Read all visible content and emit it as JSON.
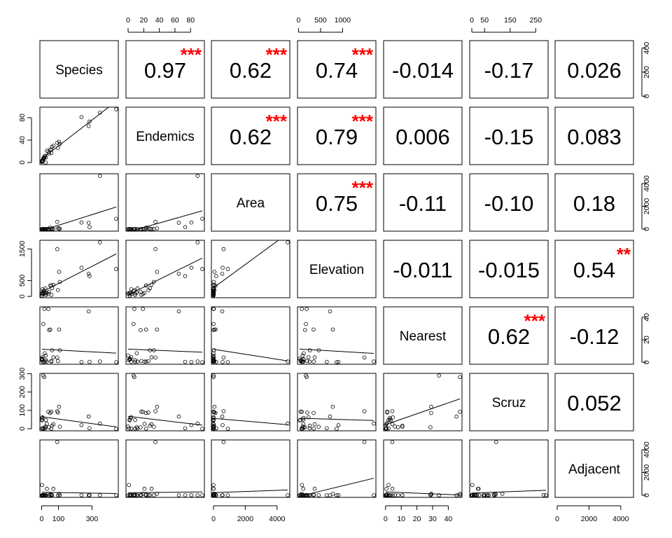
{
  "chart_data": {
    "type": "scatter-matrix",
    "variables": [
      "Species",
      "Endemics",
      "Area",
      "Elevation",
      "Nearest",
      "Scruz",
      "Adjacent"
    ],
    "variable_ticks": {
      "Species": [
        0,
        100,
        300
      ],
      "Endemics": [
        0,
        20,
        40,
        60,
        80
      ],
      "Area": [
        0,
        2000,
        4000
      ],
      "Elevation": [
        0,
        500,
        1000
      ],
      "Nearest": [
        0,
        10,
        20,
        30,
        40
      ],
      "Scruz": [
        0,
        50,
        150,
        250
      ],
      "Adjacent": [
        0,
        2000,
        4000
      ]
    },
    "row_axis_ticks": {
      "Species": [
        0,
        200,
        400
      ],
      "Endemics": [
        0,
        40,
        80
      ],
      "Area": [
        0,
        2000,
        4000
      ],
      "Elevation": [
        0,
        500,
        1500
      ],
      "Nearest": [
        0,
        20,
        40
      ],
      "Scruz": [
        0,
        100,
        200,
        300
      ],
      "Adjacent": [
        0,
        2000,
        4000
      ]
    },
    "correlations": [
      {
        "row": 0,
        "col": 1,
        "value": "0.97",
        "stars": "***"
      },
      {
        "row": 0,
        "col": 2,
        "value": "0.62",
        "stars": "***"
      },
      {
        "row": 0,
        "col": 3,
        "value": "0.74",
        "stars": "***"
      },
      {
        "row": 0,
        "col": 4,
        "value": "-0.014",
        "stars": ""
      },
      {
        "row": 0,
        "col": 5,
        "value": "-0.17",
        "stars": ""
      },
      {
        "row": 0,
        "col": 6,
        "value": "0.026",
        "stars": ""
      },
      {
        "row": 1,
        "col": 2,
        "value": "0.62",
        "stars": "***"
      },
      {
        "row": 1,
        "col": 3,
        "value": "0.79",
        "stars": "***"
      },
      {
        "row": 1,
        "col": 4,
        "value": "0.006",
        "stars": ""
      },
      {
        "row": 1,
        "col": 5,
        "value": "-0.15",
        "stars": ""
      },
      {
        "row": 1,
        "col": 6,
        "value": "0.083",
        "stars": ""
      },
      {
        "row": 2,
        "col": 3,
        "value": "0.75",
        "stars": "***"
      },
      {
        "row": 2,
        "col": 4,
        "value": "-0.11",
        "stars": ""
      },
      {
        "row": 2,
        "col": 5,
        "value": "-0.10",
        "stars": ""
      },
      {
        "row": 2,
        "col": 6,
        "value": "0.18",
        "stars": ""
      },
      {
        "row": 3,
        "col": 4,
        "value": "-0.011",
        "stars": ""
      },
      {
        "row": 3,
        "col": 5,
        "value": "-0.015",
        "stars": ""
      },
      {
        "row": 3,
        "col": 6,
        "value": "0.54",
        "stars": "**"
      },
      {
        "row": 4,
        "col": 5,
        "value": "0.62",
        "stars": "***"
      },
      {
        "row": 4,
        "col": 6,
        "value": "-0.12",
        "stars": ""
      },
      {
        "row": 5,
        "col": 6,
        "value": "0.052",
        "stars": ""
      }
    ],
    "observations": {
      "Species": [
        58,
        31,
        3,
        25,
        2,
        18,
        24,
        10,
        8,
        2,
        97,
        93,
        58,
        5,
        40,
        347,
        51,
        2,
        104,
        108,
        12,
        70,
        280,
        237,
        444,
        62,
        285,
        44,
        16,
        21
      ],
      "Endemics": [
        23,
        21,
        3,
        9,
        1,
        11,
        0,
        7,
        4,
        2,
        26,
        35,
        17,
        4,
        19,
        89,
        23,
        2,
        37,
        33,
        9,
        30,
        65,
        81,
        95,
        28,
        73,
        16,
        8,
        12
      ],
      "Area": [
        25.09,
        1.24,
        0.21,
        0.1,
        0.05,
        0.34,
        0.08,
        2.33,
        0.03,
        0.18,
        58.27,
        634.49,
        0.57,
        0.78,
        17.35,
        4669.32,
        129.49,
        0.01,
        59.56,
        17.95,
        0.23,
        4.89,
        551.62,
        572.33,
        903.82,
        24.08,
        170.92,
        1.84,
        1.24,
        2.85
      ],
      "Elevation": [
        346,
        109,
        114,
        46,
        77,
        119,
        93,
        168,
        71,
        112,
        198,
        1494,
        49,
        227,
        76,
        1707,
        343,
        25,
        777,
        458,
        94,
        367,
        716,
        906,
        864,
        259,
        640,
        147,
        186,
        253
      ],
      "Nearest": [
        0.6,
        0.6,
        2.8,
        1.9,
        1.9,
        8.0,
        6.0,
        34.1,
        0.4,
        2.6,
        1.1,
        4.3,
        1.1,
        4.6,
        47.4,
        0.7,
        29.1,
        3.3,
        29.1,
        10.7,
        0.5,
        4.4,
        45.2,
        0.2,
        0.1,
        10.7,
        0.4,
        28.6,
        47.4,
        0.6
      ],
      "Scruz": [
        0.6,
        26.3,
        58.7,
        47.4,
        1.9,
        8.0,
        12.0,
        290.2,
        0.4,
        50.2,
        88.3,
        95.3,
        93.1,
        62.2,
        92.2,
        28.1,
        85.9,
        45.9,
        119.6,
        10.7,
        0.6,
        24.4,
        66.6,
        19.8,
        0.0,
        16.5,
        2.6,
        7.5,
        281.3,
        1.9
      ],
      "Adjacent": [
        1.84,
        572.33,
        0.78,
        0.18,
        903.82,
        1.84,
        0.34,
        2.85,
        17.95,
        0.1,
        0.57,
        4669.32,
        58.27,
        0.21,
        129.49,
        0.03,
        59.56,
        0.1,
        129.49,
        0.03,
        25.09,
        572.33,
        0.57,
        4.89,
        0.52,
        0.52,
        2.33,
        0.1,
        17.95,
        0.21
      ]
    }
  }
}
